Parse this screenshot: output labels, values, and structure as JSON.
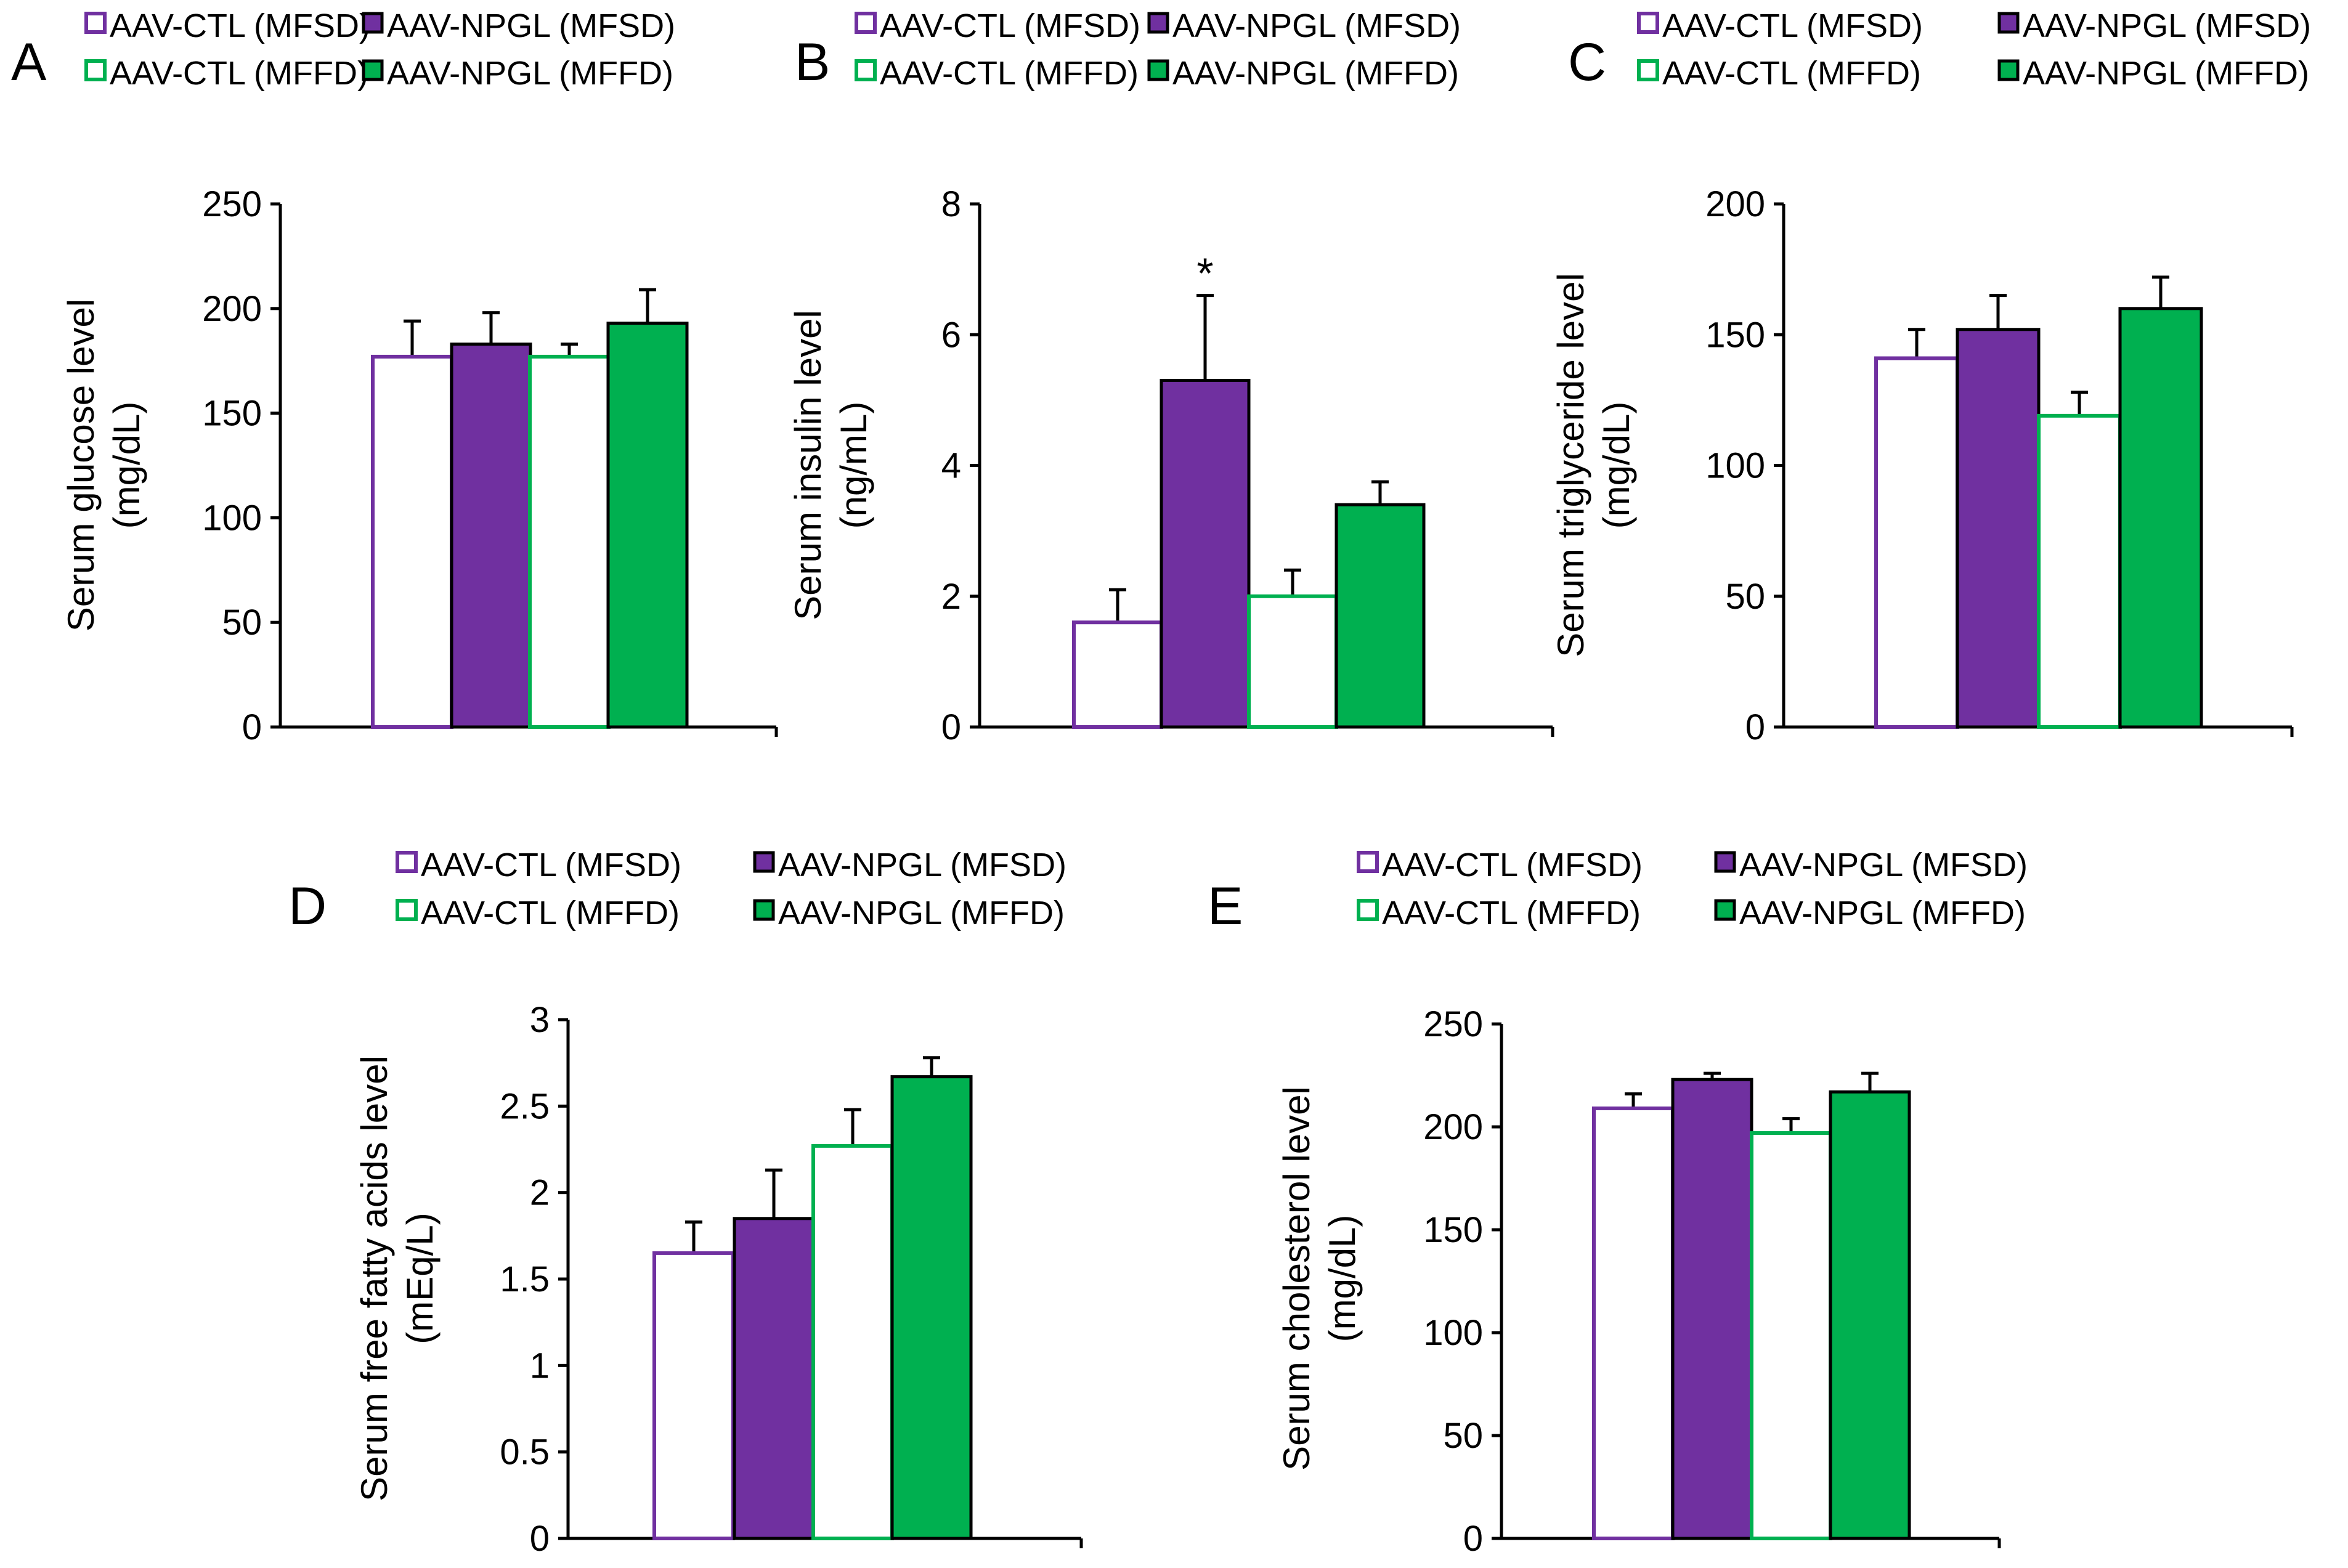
{
  "figure": {
    "legend_labels": [
      "AAV-CTL (MFSD)",
      "AAV-NPGL (MFSD)",
      "AAV-CTL (MFFD)",
      "AAV-NPGL (MFFD)"
    ],
    "series_colors": {
      "AAV-CTL (MFSD)": "#7030a0",
      "AAV-NPGL (MFSD)": "#7030a0",
      "AAV-CTL (MFFD)": "#00b050",
      "AAV-NPGL (MFFD)": "#00b050"
    }
  },
  "chart_data": [
    {
      "panel": "A",
      "type": "bar",
      "categories": [
        "AAV-CTL (MFSD)",
        "AAV-NPGL (MFSD)",
        "AAV-CTL (MFFD)",
        "AAV-NPGL (MFFD)"
      ],
      "values": [
        177,
        183,
        177,
        193
      ],
      "errors": [
        17,
        15,
        6,
        16
      ],
      "significance": [
        "",
        "",
        "",
        ""
      ],
      "ylabel_line1": "Serum glucose level",
      "ylabel_line2": "(mg/dL)",
      "ylim": [
        0,
        250
      ],
      "yticks": [
        "0",
        "50",
        "100",
        "150",
        "200",
        "250"
      ],
      "legend": [
        "AAV-CTL (MFSD)",
        "AAV-NPGL (MFSD)",
        "AAV-CTL (MFFD)",
        "AAV-NPGL (MFFD)"
      ]
    },
    {
      "panel": "B",
      "type": "bar",
      "categories": [
        "AAV-CTL (MFSD)",
        "AAV-NPGL (MFSD)",
        "AAV-CTL (MFFD)",
        "AAV-NPGL (MFFD)"
      ],
      "values": [
        1.6,
        5.3,
        2.0,
        3.4
      ],
      "errors": [
        0.5,
        1.3,
        0.4,
        0.35
      ],
      "significance": [
        "",
        "*",
        "",
        ""
      ],
      "ylabel_line1": "Serum insulin level",
      "ylabel_line2": "(ng/mL)",
      "ylim": [
        0,
        8
      ],
      "yticks": [
        "0",
        "2",
        "4",
        "6",
        "8"
      ],
      "legend": [
        "AAV-CTL (MFSD)",
        "AAV-NPGL (MFSD)",
        "AAV-CTL (MFFD)",
        "AAV-NPGL (MFFD)"
      ]
    },
    {
      "panel": "C",
      "type": "bar",
      "categories": [
        "AAV-CTL (MFSD)",
        "AAV-NPGL (MFSD)",
        "AAV-CTL (MFFD)",
        "AAV-NPGL (MFFD)"
      ],
      "values": [
        141,
        152,
        119,
        160
      ],
      "errors": [
        11,
        13,
        9,
        12
      ],
      "significance": [
        "",
        "",
        "",
        ""
      ],
      "ylabel_line1": "Serum triglyceride level",
      "ylabel_line2": "(mg/dL)",
      "ylim": [
        0,
        200
      ],
      "yticks": [
        "0",
        "50",
        "100",
        "150",
        "200"
      ],
      "legend": [
        "AAV-CTL (MFSD)",
        "AAV-NPGL (MFSD)",
        "AAV-CTL (MFFD)",
        "AAV-NPGL (MFFD)"
      ]
    },
    {
      "panel": "D",
      "type": "bar",
      "categories": [
        "AAV-CTL (MFSD)",
        "AAV-NPGL (MFSD)",
        "AAV-CTL (MFFD)",
        "AAV-NPGL (MFFD)"
      ],
      "values": [
        1.65,
        1.85,
        2.27,
        2.67
      ],
      "errors": [
        0.18,
        0.28,
        0.21,
        0.11
      ],
      "significance": [
        "",
        "",
        "",
        ""
      ],
      "ylabel_line1": "Serum free fatty acids level",
      "ylabel_line2": "(mEq/L)",
      "ylim": [
        0,
        3
      ],
      "yticks": [
        "0",
        "0.5",
        "1",
        "1.5",
        "2",
        "2.5",
        "3"
      ],
      "legend": [
        "AAV-CTL (MFSD)",
        "AAV-NPGL (MFSD)",
        "AAV-CTL (MFFD)",
        "AAV-NPGL (MFFD)"
      ]
    },
    {
      "panel": "E",
      "type": "bar",
      "categories": [
        "AAV-CTL (MFSD)",
        "AAV-NPGL (MFSD)",
        "AAV-CTL (MFFD)",
        "AAV-NPGL (MFFD)"
      ],
      "values": [
        209,
        223,
        197,
        217
      ],
      "errors": [
        7,
        3,
        7,
        9
      ],
      "significance": [
        "",
        "",
        "",
        ""
      ],
      "ylabel_line1": "Serum cholesterol level",
      "ylabel_line2": "(mg/dL)",
      "ylim": [
        0,
        250
      ],
      "yticks": [
        "0",
        "50",
        "100",
        "150",
        "200",
        "250"
      ],
      "legend": [
        "AAV-CTL (MFSD)",
        "AAV-NPGL (MFSD)",
        "AAV-CTL (MFFD)",
        "AAV-NPGL (MFFD)"
      ]
    }
  ]
}
